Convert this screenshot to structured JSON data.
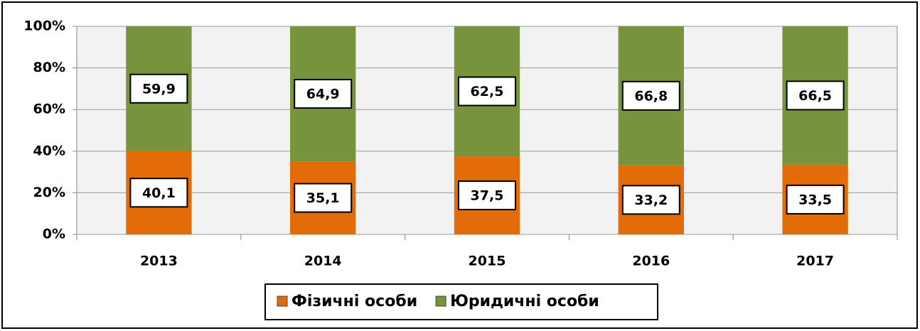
{
  "chart_data": {
    "type": "stacked_bar",
    "categories": [
      "2013",
      "2014",
      "2015",
      "2016",
      "2017"
    ],
    "series": [
      {
        "name": "Фізичні особи",
        "color": "#e36c09",
        "values": [
          40.1,
          35.1,
          37.5,
          33.2,
          33.5
        ],
        "value_labels": [
          "40,1",
          "35,1",
          "37,5",
          "33,2",
          "33,5"
        ]
      },
      {
        "name": "Юридичні особи",
        "color": "#77933c",
        "values": [
          59.9,
          64.9,
          62.5,
          66.8,
          66.5
        ],
        "value_labels": [
          "59,9",
          "64,9",
          "62,5",
          "66,8",
          "66,5"
        ]
      }
    ],
    "ylim": [
      0,
      100
    ],
    "yticks": [
      {
        "value": 0,
        "label": "0%"
      },
      {
        "value": 20,
        "label": "20%"
      },
      {
        "value": 40,
        "label": "40%"
      },
      {
        "value": 60,
        "label": "60%"
      },
      {
        "value": 80,
        "label": "80%"
      },
      {
        "value": 100,
        "label": "100%"
      }
    ],
    "grid": true,
    "legend": "bottom"
  }
}
